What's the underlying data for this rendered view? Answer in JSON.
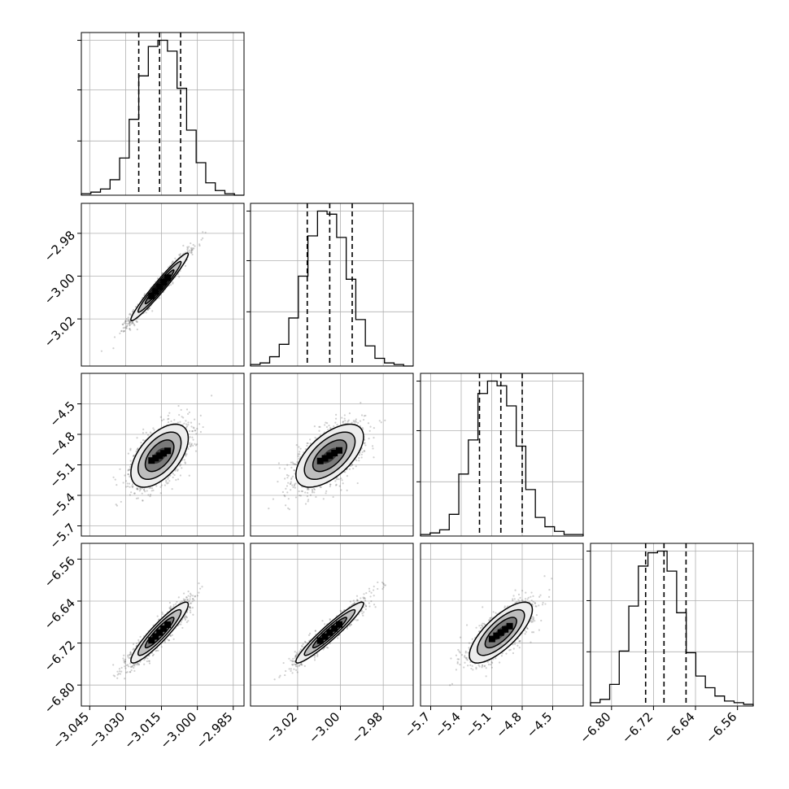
{
  "chart_data": {
    "type": "corner",
    "grid": true,
    "colors": {
      "axes": "#000000",
      "grid": "#b0b0b0",
      "density": "#000000",
      "scatter": "#555555"
    },
    "parameters": [
      {
        "range": [
          -3.0485,
          -2.9805
        ],
        "ticks": [
          -3.045,
          -3.03,
          -3.015,
          -3.0,
          -2.985
        ],
        "tick_labels": [
          "−3.045",
          "−3.030",
          "−3.015",
          "−3.000",
          "−2.985"
        ],
        "quantiles": [
          -3.0245,
          -3.0158,
          -3.007
        ],
        "hist": [
          1,
          2,
          4,
          10,
          24,
          49,
          77,
          96,
          100,
          93,
          69,
          42,
          21,
          8,
          3,
          1,
          0
        ]
      },
      {
        "range": [
          -3.042,
          -2.966
        ],
        "ticks": [
          -3.02,
          -3.0,
          -2.98
        ],
        "tick_labels": [
          "−3.02",
          "−3.00",
          "−2.98"
        ],
        "quantiles": [
          -3.0155,
          -3.005,
          -2.9945
        ],
        "hist": [
          1,
          2,
          6,
          14,
          31,
          58,
          84,
          100,
          98,
          83,
          56,
          30,
          13,
          5,
          2,
          1,
          0
        ]
      },
      {
        "range": [
          -5.8,
          -4.2
        ],
        "ticks": [
          -5.7,
          -5.4,
          -5.1,
          -4.8,
          -4.5
        ],
        "tick_labels": [
          "−5.7",
          "−5.4",
          "−5.1",
          "−4.8",
          "−4.5"
        ],
        "quantiles": [
          -5.22,
          -5.01,
          -4.8
        ],
        "hist": [
          1,
          2,
          4,
          14,
          40,
          62,
          92,
          100,
          97,
          84,
          58,
          30,
          12,
          6,
          3,
          1,
          1
        ]
      },
      {
        "range": [
          -6.84,
          -6.53
        ],
        "ticks": [
          -6.8,
          -6.72,
          -6.64,
          -6.56
        ],
        "tick_labels": [
          "−6.80",
          "−6.72",
          "−6.64",
          "−6.56"
        ],
        "quantiles": [
          -6.735,
          -6.7,
          -6.658
        ],
        "hist": [
          2,
          4,
          13,
          33,
          60,
          84,
          92,
          93,
          81,
          56,
          32,
          18,
          11,
          6,
          3,
          2,
          1
        ]
      }
    ],
    "pairs": [
      {
        "x": 0,
        "y": 1,
        "sd": [
          0.006,
          0.0079
        ],
        "corr": 0.97
      },
      {
        "x": 0,
        "y": 2,
        "sd": [
          0.006,
          0.155
        ],
        "corr": 0.55
      },
      {
        "x": 1,
        "y": 2,
        "sd": [
          0.0079,
          0.155
        ],
        "corr": 0.6
      },
      {
        "x": 0,
        "y": 3,
        "sd": [
          0.006,
          0.029
        ],
        "corr": 0.92
      },
      {
        "x": 1,
        "y": 3,
        "sd": [
          0.0079,
          0.029
        ],
        "corr": 0.95
      },
      {
        "x": 2,
        "y": 3,
        "sd": [
          0.155,
          0.029
        ],
        "corr": 0.75
      }
    ]
  }
}
